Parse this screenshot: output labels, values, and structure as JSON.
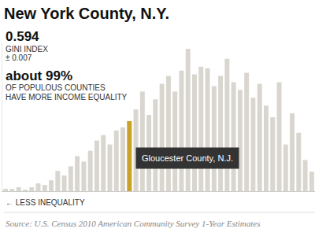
{
  "chart_data": {
    "type": "bar",
    "title": "New York County, N.Y.",
    "stats": [
      {
        "value": "0.594",
        "label": "GINI INDEX",
        "note": "± 0.007"
      },
      {
        "value": "about 99%",
        "label": [
          "OF POPULOUS COUNTIES",
          "HAVE MORE INCOME EQUALITY"
        ]
      }
    ],
    "categories": [
      null,
      null,
      null,
      null,
      null,
      null,
      null,
      null,
      null,
      null,
      null,
      null,
      null,
      null,
      null,
      null,
      null,
      null,
      null,
      null,
      null,
      null,
      null,
      null,
      null,
      null,
      null,
      null,
      null,
      null,
      null,
      null,
      null,
      null,
      null,
      null,
      null,
      null,
      null,
      null,
      null,
      null,
      null,
      null,
      null,
      null,
      null,
      null
    ],
    "values": [
      3,
      3,
      5,
      2,
      5,
      10,
      8,
      14,
      26,
      20,
      32,
      45,
      38,
      52,
      65,
      72,
      60,
      78,
      82,
      90,
      105,
      128,
      98,
      118,
      138,
      148,
      128,
      155,
      183,
      150,
      160,
      158,
      135,
      148,
      170,
      140,
      130,
      152,
      120,
      138,
      110,
      95,
      140,
      60,
      100,
      75,
      40,
      25
    ],
    "colors": [
      "#d9d6cf",
      "#d9d6cf",
      "#d9d6cf",
      "#d9d6cf",
      "#d9d6cf",
      "#d9d6cf",
      "#d9d6cf",
      "#d9d6cf",
      "#d9d6cf",
      "#d9d6cf",
      "#d9d6cf",
      "#d9d6cf",
      "#d9d6cf",
      "#d9d6cf",
      "#d9d6cf",
      "#d9d6cf",
      "#d9d6cf",
      "#d9d6cf",
      "#d9d6cf",
      "#c9a227",
      "#d9d6cf",
      "#d9d6cf",
      "#d9d6cf",
      "#d9d6cf",
      "#d9d6cf",
      "#d9d6cf",
      "#d9d6cf",
      "#d9d6cf",
      "#d9d6cf",
      "#d9d6cf",
      "#d9d6cf",
      "#d9d6cf",
      "#d9d6cf",
      "#d9d6cf",
      "#d9d6cf",
      "#d9d6cf",
      "#d9d6cf",
      "#d9d6cf",
      "#d9d6cf",
      "#d9d6cf",
      "#d9d6cf",
      "#d9d6cf",
      "#d9d6cf",
      "#d9d6cf",
      "#d9d6cf",
      "#d9d6cf",
      "#d9d6cf",
      "#d9d6cf"
    ],
    "ylim": [
      0,
      190
    ],
    "tick_labels": false,
    "grid": false,
    "annotations": [
      {
        "text": "Gloucester County, N.J.",
        "category_index": 19
      }
    ],
    "xlabel": "← LESS INEQUALITY",
    "source": "Source: U.S. Census 2010 American Community Survey 1-Year Estimates"
  }
}
